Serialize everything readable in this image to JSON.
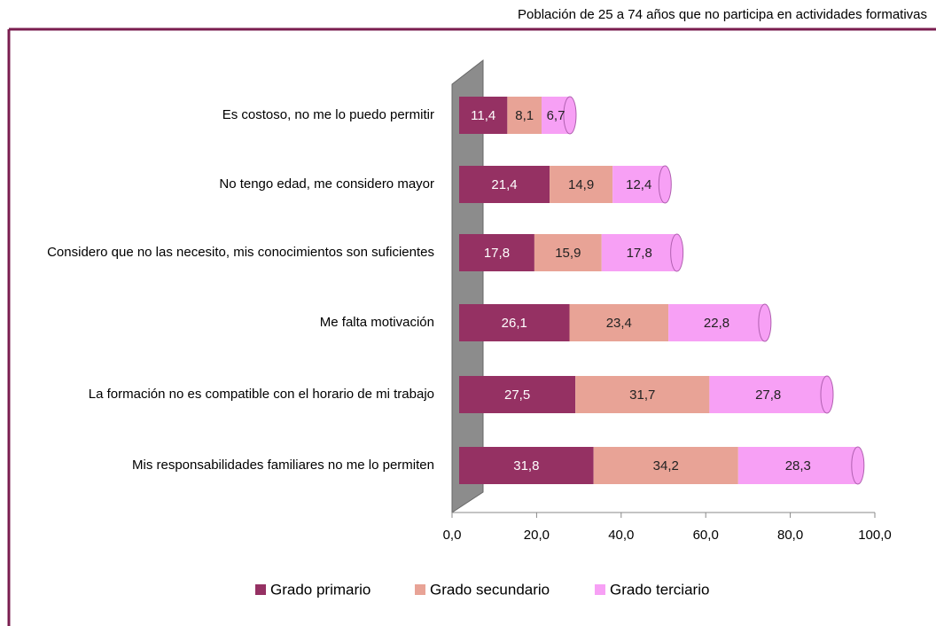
{
  "chart_data": {
    "type": "stacked_bar_horizontal",
    "title": "Población de 25 a 74 años que no participa en actividades formativas",
    "categories": [
      "Es costoso, no me lo puedo permitir",
      "No tengo edad, me considero mayor",
      "Considero que no las necesito, mis conocimientos son suficientes",
      "Me falta motivación",
      "La formación no es compatible con el horario de mi trabajo",
      "Mis responsabilidades familiares no me lo permiten"
    ],
    "series": [
      {
        "name": "Grado primario",
        "color": "#953163",
        "values": [
          11.4,
          21.4,
          17.8,
          26.1,
          27.5,
          31.8
        ],
        "value_labels": [
          "11,4",
          "21,4",
          "17,8",
          "26,1",
          "27,5",
          "31,8"
        ]
      },
      {
        "name": "Grado secundario",
        "color": "#e8a396",
        "values": [
          8.1,
          14.9,
          15.9,
          23.4,
          31.7,
          34.2
        ],
        "value_labels": [
          "8,1",
          "14,9",
          "15,9",
          "23,4",
          "31,7",
          "34,2"
        ]
      },
      {
        "name": "Grado terciario",
        "color": "#f7a0f5",
        "values": [
          6.7,
          12.4,
          17.8,
          22.8,
          27.8,
          28.3
        ],
        "value_labels": [
          "6,7",
          "12,4",
          "17,8",
          "22,8",
          "27,8",
          "28,3"
        ]
      }
    ],
    "xlim": [
      0,
      100
    ],
    "xticks": [
      {
        "value": 0,
        "label": "0,0"
      },
      {
        "value": 20,
        "label": "20,0"
      },
      {
        "value": 40,
        "label": "40,0"
      },
      {
        "value": 60,
        "label": "60,0"
      },
      {
        "value": 80,
        "label": "80,0"
      },
      {
        "value": 100,
        "label": "100,0"
      }
    ],
    "legend": "bottom"
  }
}
